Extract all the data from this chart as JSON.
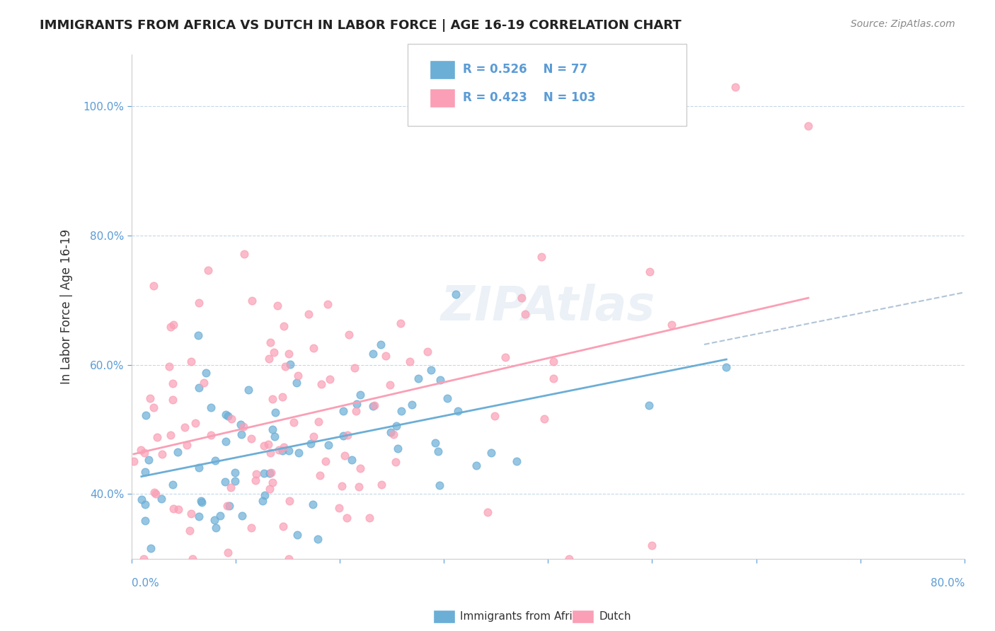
{
  "title": "IMMIGRANTS FROM AFRICA VS DUTCH IN LABOR FORCE | AGE 16-19 CORRELATION CHART",
  "source": "Source: ZipAtlas.com",
  "ylabel": "In Labor Force | Age 16-19",
  "ytick_labels": [
    "40.0%",
    "60.0%",
    "80.0%",
    "100.0%"
  ],
  "ytick_values": [
    0.4,
    0.6,
    0.8,
    1.0
  ],
  "xlim": [
    0.0,
    0.8
  ],
  "ylim": [
    0.3,
    1.08
  ],
  "legend_label1": "Immigrants from Africa",
  "legend_label2": "Dutch",
  "r1": 0.526,
  "n1": 77,
  "r2": 0.423,
  "n2": 103,
  "color_blue": "#6baed6",
  "color_pink": "#fa9fb5",
  "color_dash_line": "#b0c4d8",
  "watermark": "ZIPAtlas"
}
